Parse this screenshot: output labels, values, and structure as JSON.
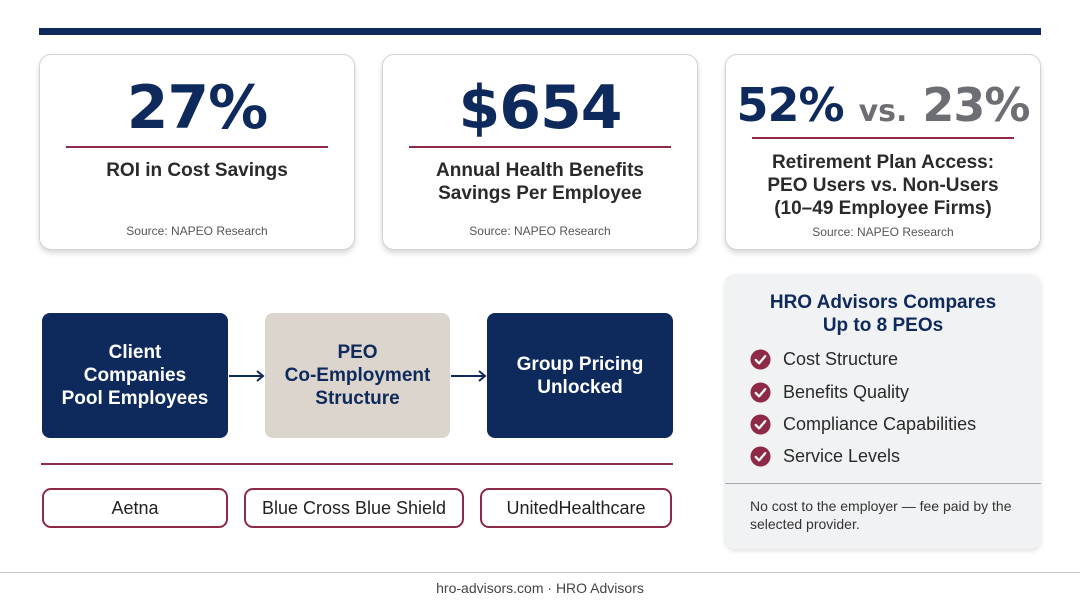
{
  "stats": [
    {
      "value": "27%",
      "caption_lines": [
        "ROI in Cost Savings"
      ],
      "source": "Source: NAPEO Research"
    },
    {
      "value": "$654",
      "caption_lines": [
        "Annual Health Benefits",
        "Savings Per Employee"
      ],
      "source": "Source: NAPEO Research"
    },
    {
      "value_left": "52%",
      "value_vs": "vs.",
      "value_right": "23%",
      "caption_lines": [
        "Retirement Plan Access:",
        "PEO Users vs. Non-Users",
        "(10–49 Employee Firms)"
      ],
      "source": "Source: NAPEO Research"
    }
  ],
  "flow": [
    {
      "lines": [
        "Client",
        "Companies",
        "Pool Employees"
      ]
    },
    {
      "lines": [
        "PEO",
        "Co-Employment",
        "Structure"
      ]
    },
    {
      "lines": [
        "Group Pricing",
        "Unlocked"
      ]
    }
  ],
  "carriers": [
    "Aetna",
    "Blue Cross Blue Shield",
    "UnitedHealthcare"
  ],
  "compare": {
    "title_lines": [
      "HRO Advisors Compares",
      "Up to 8 PEOs"
    ],
    "items": [
      "Cost Structure",
      "Benefits Quality",
      "Compliance Capabilities",
      "Service Levels"
    ],
    "note": "No cost to the employer — fee paid by the selected provider."
  },
  "footer": "hro-advisors.com · HRO Advisors",
  "icons": {
    "check": "check-circle-icon",
    "arrow": "arrow-right-icon"
  },
  "colors": {
    "navy": "#0e2a5c",
    "maroon": "#8e2a45",
    "beige": "#dcd5cd",
    "gray": "#6d6e73",
    "panel": "#f1f2f4"
  }
}
